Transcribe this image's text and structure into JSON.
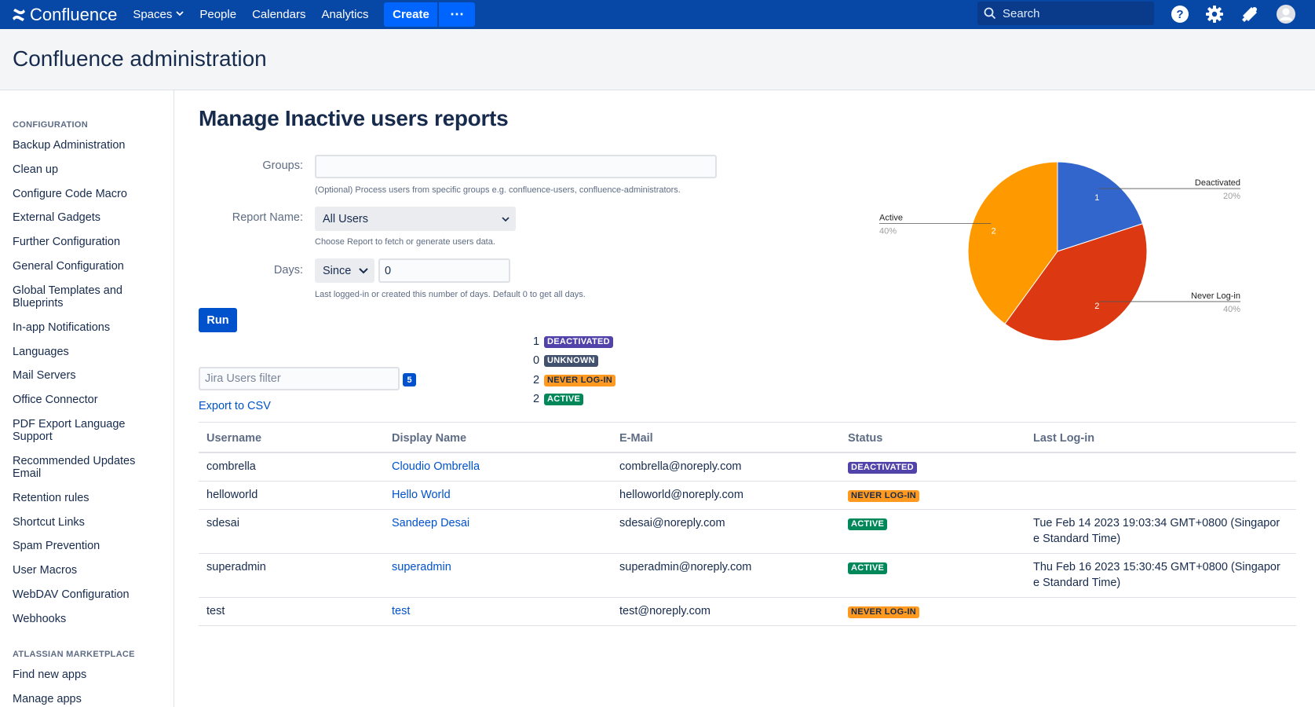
{
  "topnav": {
    "logo_text": "Confluence",
    "items": [
      {
        "label": "Spaces",
        "dropdown": true
      },
      {
        "label": "People"
      },
      {
        "label": "Calendars"
      },
      {
        "label": "Analytics"
      }
    ],
    "create_label": "Create",
    "more_label": "⋯",
    "search_placeholder": "Search",
    "colors": {
      "bar": "#0747a6",
      "create": "#0065ff"
    }
  },
  "header": {
    "title": "Confluence administration"
  },
  "sidebar": {
    "sections": [
      {
        "title": "CONFIGURATION",
        "items": [
          "Backup Administration",
          "Clean up",
          "Configure Code Macro",
          "External Gadgets",
          "Further Configuration",
          "General Configuration",
          "Global Templates and Blueprints",
          "In-app Notifications",
          "Languages",
          "Mail Servers",
          "Office Connector",
          "PDF Export Language Support",
          "Recommended Updates Email",
          "Retention rules",
          "Shortcut Links",
          "Spam Prevention",
          "User Macros",
          "WebDAV Configuration",
          "Webhooks"
        ]
      },
      {
        "title": "ATLASSIAN MARKETPLACE",
        "items": [
          "Find new apps",
          "Manage apps"
        ]
      }
    ]
  },
  "main": {
    "title": "Manage Inactive users reports",
    "groups": {
      "label": "Groups:",
      "value": "",
      "help": "(Optional) Process users from specific groups e.g. confluence-users, confluence-administrators."
    },
    "report_name": {
      "label": "Report Name:",
      "selected": "All Users",
      "help": "Choose Report to fetch or generate users data."
    },
    "days": {
      "label": "Days:",
      "mode": "Since",
      "value": "0",
      "help": "Last logged-in or created this number of days. Default 0 to get all days."
    },
    "run_label": "Run",
    "counts": [
      {
        "count": "1",
        "status": "DEACTIVATED",
        "kind": "deact"
      },
      {
        "count": "0",
        "status": "UNKNOWN",
        "kind": "unknown"
      },
      {
        "count": "2",
        "status": "NEVER LOG-IN",
        "kind": "never"
      },
      {
        "count": "2",
        "status": "ACTIVE",
        "kind": "active"
      }
    ],
    "filter_placeholder": "Jira Users filter",
    "filter_count": "5",
    "export_label": "Export to CSV",
    "table": {
      "headers": [
        "Username",
        "Display Name",
        "E-Mail",
        "Status",
        "Last Log-in"
      ],
      "rows": [
        {
          "username": "combrella",
          "display": "Cloudio Ombrella",
          "email": "combrella@noreply.com",
          "status": "DEACTIVATED",
          "kind": "deact",
          "last_login": [
            "",
            ""
          ]
        },
        {
          "username": "helloworld",
          "display": "Hello World",
          "email": "helloworld@noreply.com",
          "status": "NEVER LOG-IN",
          "kind": "never",
          "last_login": [
            "",
            ""
          ]
        },
        {
          "username": "sdesai",
          "display": "Sandeep Desai",
          "email": "sdesai@noreply.com",
          "status": "ACTIVE",
          "kind": "active",
          "last_login": [
            "Tue Feb 14 2023 19:03:34 GMT+0800 (Singapor",
            "e Standard Time)"
          ]
        },
        {
          "username": "superadmin",
          "display": "superadmin",
          "email": "superadmin@noreply.com",
          "status": "ACTIVE",
          "kind": "active",
          "last_login": [
            "Thu Feb 16 2023 15:30:45 GMT+0800 (Singapor",
            "e Standard Time)"
          ]
        },
        {
          "username": "test",
          "display": "test",
          "email": "test@noreply.com",
          "status": "NEVER LOG-IN",
          "kind": "never",
          "last_login": [
            "",
            ""
          ]
        }
      ]
    }
  },
  "chart_data": {
    "type": "pie",
    "slices": [
      {
        "label": "Deactivated",
        "value": 1,
        "percent": "20%",
        "color": "#3366cc"
      },
      {
        "label": "Never Log-in",
        "value": 2,
        "percent": "40%",
        "color": "#dc3912"
      },
      {
        "label": "Active",
        "value": 2,
        "percent": "40%",
        "color": "#ff9900"
      }
    ],
    "start_angle_deg": 0,
    "legend": "labeled callouts"
  }
}
